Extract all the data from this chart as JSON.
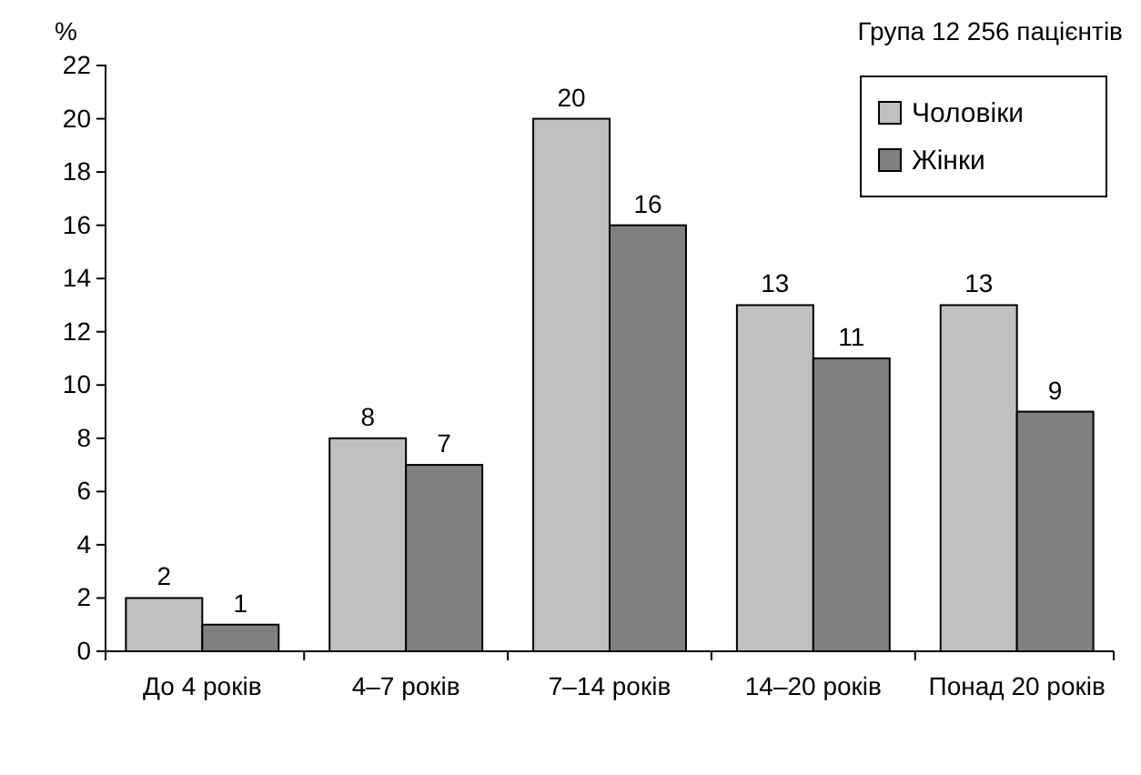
{
  "chart_data": {
    "type": "bar",
    "ylabel": "%",
    "subtitle": "Група 12 256 пацієнтів",
    "categories": [
      "До 4 років",
      "4–7 років",
      "7–14 років",
      "14–20 років",
      "Понад 20 років"
    ],
    "series": [
      {
        "name": "Чоловіки",
        "color": "#c0c0c0",
        "values": [
          2,
          8,
          20,
          13,
          13
        ]
      },
      {
        "name": "Жінки",
        "color": "#808080",
        "values": [
          1,
          7,
          16,
          11,
          9
        ]
      }
    ],
    "ylim": [
      0,
      22
    ],
    "yticks": [
      0,
      2,
      4,
      6,
      8,
      10,
      12,
      14,
      16,
      18,
      20,
      22
    ],
    "data_labels": true,
    "legend": "top right",
    "grid": false
  }
}
